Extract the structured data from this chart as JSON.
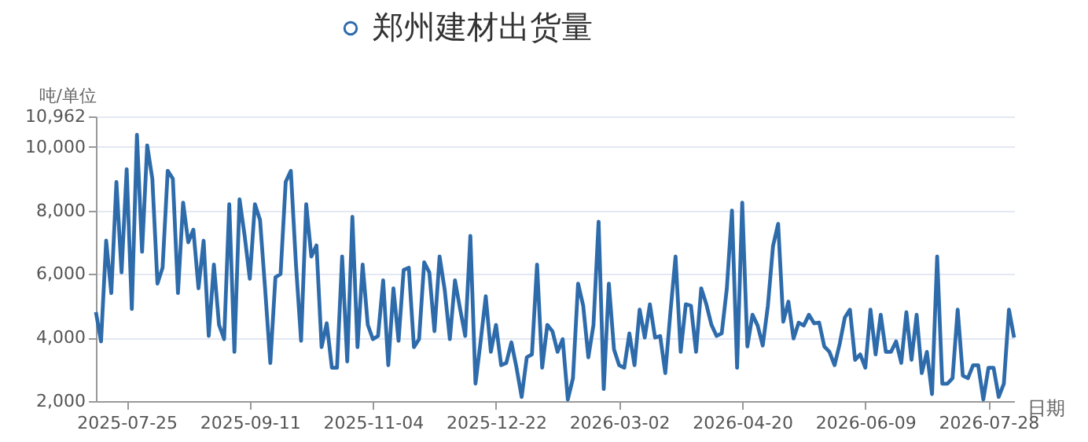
{
  "chart_data": {
    "type": "line",
    "ylabel": "吨/单位",
    "xlabel": "日期",
    "legend": "top",
    "grid": "y",
    "categories": [
      null,
      null,
      null,
      null,
      null,
      null,
      "2025-07-25",
      null,
      null,
      null,
      null,
      null,
      null,
      null,
      null,
      null,
      null,
      null,
      null,
      null,
      null,
      null,
      null,
      null,
      null,
      null,
      null,
      null,
      null,
      null,
      "2025-09-11",
      null,
      null,
      null,
      null,
      null,
      null,
      null,
      null,
      null,
      null,
      null,
      null,
      null,
      null,
      null,
      null,
      null,
      null,
      null,
      null,
      null,
      null,
      null,
      "2025-11-04",
      null,
      null,
      null,
      null,
      null,
      null,
      null,
      null,
      null,
      null,
      null,
      null,
      null,
      null,
      null,
      null,
      null,
      null,
      null,
      null,
      null,
      null,
      null,
      "2025-12-22",
      null,
      null,
      null,
      null,
      null,
      null,
      null,
      null,
      null,
      null,
      null,
      null,
      null,
      null,
      null,
      null,
      null,
      null,
      null,
      null,
      null,
      null,
      null,
      "2026-03-02",
      null,
      null,
      null,
      null,
      null,
      null,
      null,
      null,
      null,
      null,
      null,
      null,
      null,
      null,
      null,
      null,
      null,
      null,
      null,
      null,
      null,
      null,
      null,
      "2026-04-20",
      null,
      null,
      null,
      null,
      null,
      null,
      null,
      null,
      null,
      null,
      null,
      null,
      null,
      null,
      null,
      null,
      null,
      null,
      null,
      null,
      null,
      null,
      null,
      "2026-06-09",
      null,
      null,
      null,
      null,
      null,
      null,
      null,
      null,
      null,
      null,
      null,
      null,
      null,
      null,
      null,
      null,
      null,
      null,
      null,
      null,
      null,
      null,
      null,
      "2026-07-28",
      null,
      null,
      null,
      null,
      null
    ],
    "ylim": [
      2000,
      10962
    ],
    "yticks": [
      {
        "value": 2000,
        "label": "2,000"
      },
      {
        "value": 4000,
        "label": "4,000"
      },
      {
        "value": 6000,
        "label": "6,000"
      },
      {
        "value": 8000,
        "label": "8,000"
      },
      {
        "value": 10000,
        "label": "10,000"
      },
      {
        "value": 10962,
        "label": "10,962"
      }
    ],
    "series": [
      {
        "name": "郑州建材出货量",
        "color": "#2e6bab",
        "values": [
          4800,
          3880,
          7050,
          5400,
          8900,
          6050,
          9300,
          4900,
          10380,
          6700,
          10050,
          9000,
          5700,
          6200,
          9250,
          9000,
          5400,
          8250,
          7000,
          7400,
          5550,
          7050,
          4050,
          6300,
          4400,
          3950,
          8200,
          3550,
          8350,
          7200,
          5850,
          8200,
          7700,
          5500,
          3200,
          5900,
          6000,
          8900,
          9250,
          6300,
          3900,
          8200,
          6550,
          6900,
          3700,
          4450,
          3050,
          3050,
          6550,
          3250,
          7800,
          3700,
          6300,
          4400,
          3950,
          4050,
          5800,
          3130,
          5550,
          3900,
          6130,
          6200,
          3700,
          3950,
          6370,
          6050,
          4200,
          6550,
          5500,
          3950,
          5800,
          4900,
          4050,
          7200,
          2550,
          3880,
          5300,
          3550,
          4400,
          3130,
          3200,
          3850,
          3050,
          2130,
          3380,
          3470,
          6300,
          3050,
          4400,
          4200,
          3550,
          3950,
          2050,
          2720,
          5700,
          5000,
          3380,
          4400,
          7650,
          2380,
          5700,
          3630,
          3130,
          3050,
          4130,
          3130,
          4880,
          4000,
          5050,
          4000,
          4050,
          2880,
          4800,
          6550,
          3550,
          5050,
          5000,
          3550,
          5550,
          5050,
          4400,
          4050,
          4130,
          5550,
          8000,
          3050,
          8250,
          3720,
          4720,
          4380,
          3750,
          5000,
          6880,
          7580,
          4500,
          5130,
          3970,
          4470,
          4380,
          4720,
          4450,
          4470,
          3720,
          3550,
          3130,
          3800,
          4630,
          4880,
          3300,
          3470,
          3050,
          4880,
          3470,
          4720,
          3550,
          3550,
          3880,
          3200,
          4800,
          3300,
          4720,
          2880,
          3550,
          2220,
          6550,
          2550,
          2550,
          2720,
          4880,
          2800,
          2720,
          3130,
          3130,
          2050,
          3050,
          3050,
          2130,
          2550,
          4880,
          4000
        ]
      }
    ]
  }
}
